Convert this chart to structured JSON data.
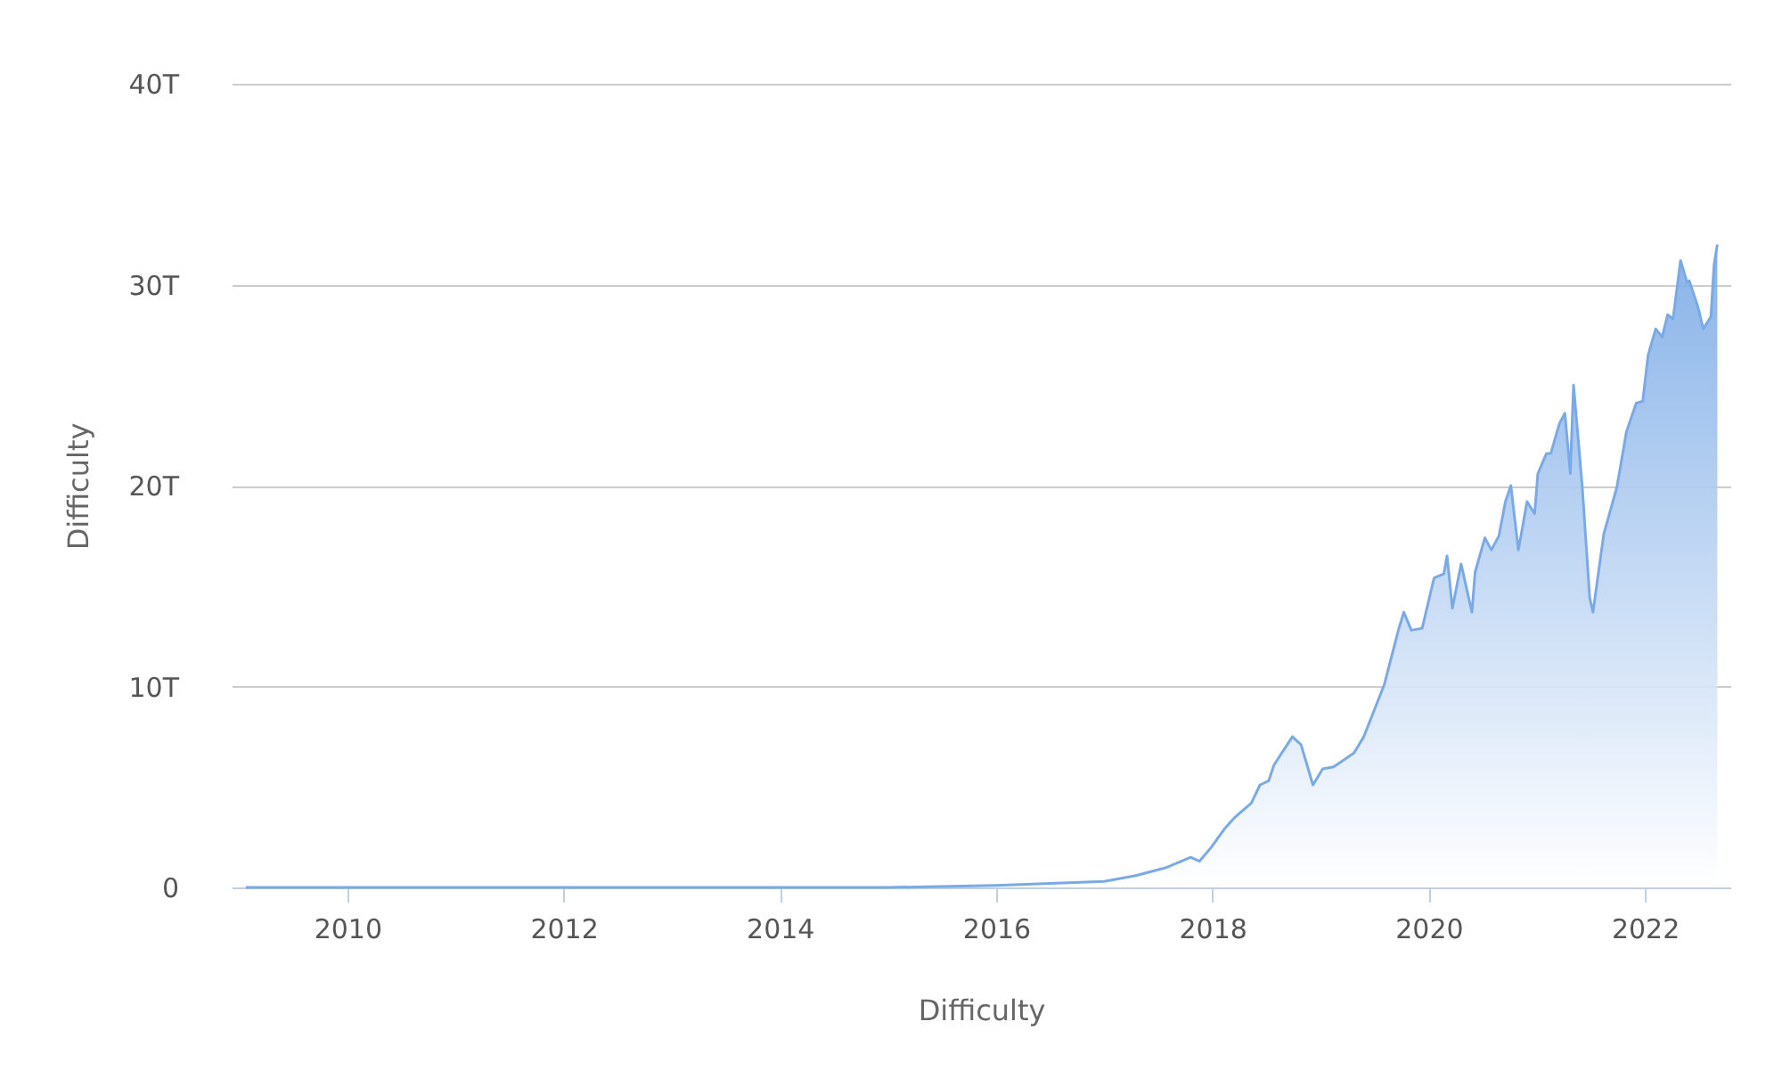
{
  "chart_data": {
    "type": "area",
    "xlabel": "Difficulty",
    "ylabel": "Difficulty",
    "xlim": [
      2008.93,
      2022.79
    ],
    "xticks": [
      2010,
      2012,
      2014,
      2016,
      2018,
      2020,
      2022
    ],
    "ylim": [
      0,
      40
    ],
    "yticks": [
      0,
      {
        "value": 10,
        "label": "10T"
      },
      {
        "value": 20,
        "label": "20T"
      },
      {
        "value": 30,
        "label": "30T"
      },
      {
        "value": 40,
        "label": "40T"
      }
    ],
    "grid": "y",
    "series": [
      {
        "color": "#7aaae6",
        "x": [
          2009.06,
          2013.0,
          2014.0,
          2015.0,
          2016.0,
          2016.5,
          2017.0,
          2017.3,
          2017.58,
          2017.8,
          2017.88,
          2017.99,
          2018.11,
          2018.21,
          2018.36,
          2018.44,
          2018.52,
          2018.57,
          2018.74,
          2018.82,
          2018.93,
          2019.02,
          2019.12,
          2019.23,
          2019.31,
          2019.4,
          2019.51,
          2019.59,
          2019.72,
          2019.77,
          2019.84,
          2019.94,
          2020.05,
          2020.14,
          2020.17,
          2020.22,
          2020.3,
          2020.4,
          2020.43,
          2020.52,
          2020.58,
          2020.65,
          2020.71,
          2020.76,
          2020.83,
          2020.91,
          2020.98,
          2021.01,
          2021.09,
          2021.13,
          2021.21,
          2021.26,
          2021.31,
          2021.34,
          2021.42,
          2021.49,
          2021.52,
          2021.62,
          2021.74,
          2021.83,
          2021.92,
          2021.98,
          2022.03,
          2022.1,
          2022.16,
          2022.21,
          2022.26,
          2022.33,
          2022.39,
          2022.41,
          2022.49,
          2022.54,
          2022.61,
          2022.64,
          2022.67
        ],
        "values": [
          0,
          0,
          0,
          0,
          0.1,
          0.2,
          0.3,
          0.6,
          1.0,
          1.5,
          1.3,
          2.0,
          2.9,
          3.5,
          4.2,
          5.1,
          5.3,
          6.1,
          7.5,
          7.1,
          5.1,
          5.9,
          6.0,
          6.4,
          6.7,
          7.5,
          9.0,
          10.1,
          12.8,
          13.7,
          12.8,
          12.9,
          15.4,
          15.6,
          16.5,
          13.9,
          16.1,
          13.7,
          15.7,
          17.4,
          16.8,
          17.5,
          19.2,
          20.0,
          16.8,
          19.2,
          18.6,
          20.6,
          21.6,
          21.6,
          23.1,
          23.6,
          20.6,
          25.0,
          20.0,
          14.4,
          13.7,
          17.6,
          19.9,
          22.7,
          24.1,
          24.2,
          26.5,
          27.8,
          27.4,
          28.5,
          28.3,
          31.2,
          30.1,
          30.2,
          28.9,
          27.8,
          28.4,
          31.0,
          32.0
        ]
      }
    ]
  }
}
